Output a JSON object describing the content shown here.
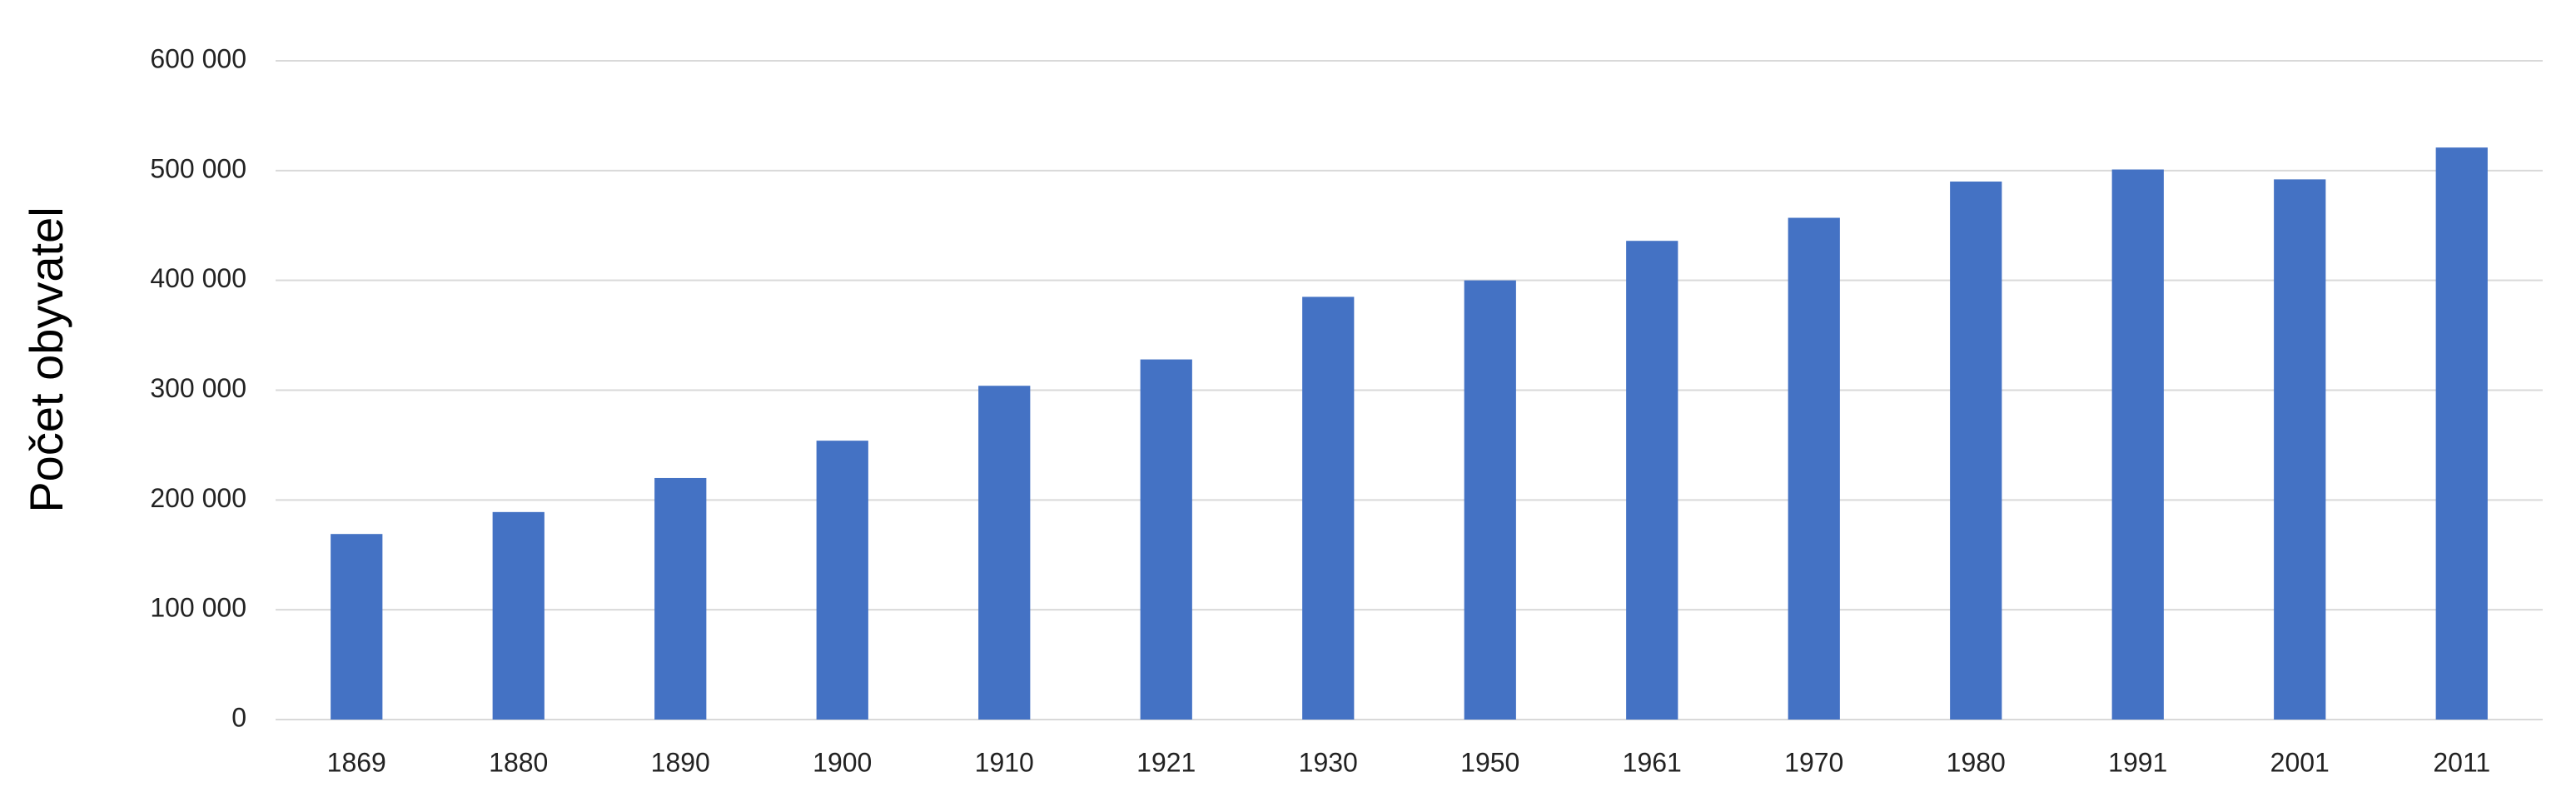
{
  "chart_data": {
    "type": "bar",
    "y_label": "Počet obyvatel",
    "categories": [
      "1869",
      "1880",
      "1890",
      "1900",
      "1910",
      "1921",
      "1930",
      "1950",
      "1961",
      "1970",
      "1980",
      "1991",
      "2001",
      "2011"
    ],
    "values": [
      169000,
      189000,
      220000,
      254000,
      304000,
      328000,
      385000,
      400000,
      436000,
      457000,
      490000,
      501000,
      492000,
      521000
    ],
    "color": "#4472c4",
    "ylim": [
      0,
      600000
    ],
    "yticks": [
      0,
      {
        "value": 100000,
        "label": "100 000"
      },
      {
        "value": 200000,
        "label": "200 000"
      },
      {
        "value": 300000,
        "label": "300 000"
      },
      {
        "value": 400000,
        "label": "400 000"
      },
      {
        "value": 500000,
        "label": "500 000"
      },
      {
        "value": 600000,
        "label": "600 000"
      }
    ],
    "grid": true
  }
}
